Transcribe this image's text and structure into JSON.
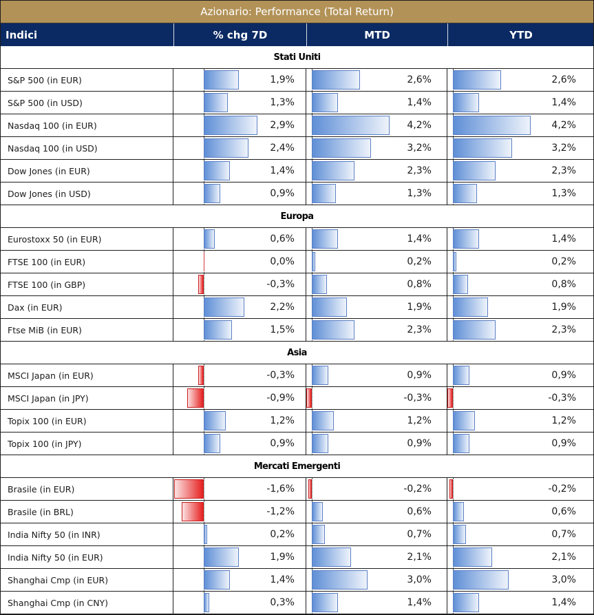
{
  "title": "Azionario: Performance (Total Return)",
  "headers": {
    "name": "Indici",
    "chg7d": "% chg 7D",
    "mtd": "MTD",
    "ytd": "YTD"
  },
  "colors": {
    "title_bg": "#b29257",
    "header_bg": "#0b2a63",
    "positive_bar": "#5f8fd6",
    "negative_bar": "#e62020"
  },
  "sections": [
    {
      "name": "Stati Uniti",
      "rows": [
        {
          "name": "S&P 500 (in EUR)",
          "d7": 1.9,
          "d7_label": "1,9%",
          "mtd": 2.6,
          "mtd_label": "2,6%",
          "ytd": 2.6,
          "ytd_label": "2,6%"
        },
        {
          "name": "S&P 500 (in USD)",
          "d7": 1.3,
          "d7_label": "1,3%",
          "mtd": 1.4,
          "mtd_label": "1,4%",
          "ytd": 1.4,
          "ytd_label": "1,4%"
        },
        {
          "name": "Nasdaq 100 (in EUR)",
          "d7": 2.9,
          "d7_label": "2,9%",
          "mtd": 4.2,
          "mtd_label": "4,2%",
          "ytd": 4.2,
          "ytd_label": "4,2%"
        },
        {
          "name": "Nasdaq 100 (in USD)",
          "d7": 2.4,
          "d7_label": "2,4%",
          "mtd": 3.2,
          "mtd_label": "3,2%",
          "ytd": 3.2,
          "ytd_label": "3,2%"
        },
        {
          "name": "Dow Jones (in EUR)",
          "d7": 1.4,
          "d7_label": "1,4%",
          "mtd": 2.3,
          "mtd_label": "2,3%",
          "ytd": 2.3,
          "ytd_label": "2,3%"
        },
        {
          "name": "Dow Jones (in USD)",
          "d7": 0.9,
          "d7_label": "0,9%",
          "mtd": 1.3,
          "mtd_label": "1,3%",
          "ytd": 1.3,
          "ytd_label": "1,3%"
        }
      ]
    },
    {
      "name": "Europa",
      "rows": [
        {
          "name": "Eurostoxx 50 (in EUR)",
          "d7": 0.6,
          "d7_label": "0,6%",
          "mtd": 1.4,
          "mtd_label": "1,4%",
          "ytd": 1.4,
          "ytd_label": "1,4%"
        },
        {
          "name": "FTSE 100 (in EUR)",
          "d7": 0.0,
          "d7_label": "0,0%",
          "mtd": 0.2,
          "mtd_label": "0,2%",
          "ytd": 0.2,
          "ytd_label": "0,2%"
        },
        {
          "name": "FTSE 100 (in GBP)",
          "d7": -0.3,
          "d7_label": "-0,3%",
          "mtd": 0.8,
          "mtd_label": "0,8%",
          "ytd": 0.8,
          "ytd_label": "0,8%"
        },
        {
          "name": "Dax (in EUR)",
          "d7": 2.2,
          "d7_label": "2,2%",
          "mtd": 1.9,
          "mtd_label": "1,9%",
          "ytd": 1.9,
          "ytd_label": "1,9%"
        },
        {
          "name": "Ftse MiB (in EUR)",
          "d7": 1.5,
          "d7_label": "1,5%",
          "mtd": 2.3,
          "mtd_label": "2,3%",
          "ytd": 2.3,
          "ytd_label": "2,3%"
        }
      ]
    },
    {
      "name": "Asia",
      "rows": [
        {
          "name": "MSCI Japan (in EUR)",
          "d7": -0.3,
          "d7_label": "-0,3%",
          "mtd": 0.9,
          "mtd_label": "0,9%",
          "ytd": 0.9,
          "ytd_label": "0,9%"
        },
        {
          "name": "MSCI Japan (in JPY)",
          "d7": -0.9,
          "d7_label": "-0,9%",
          "mtd": -0.3,
          "mtd_label": "-0,3%",
          "ytd": -0.3,
          "ytd_label": "-0,3%"
        },
        {
          "name": "Topix 100 (in EUR)",
          "d7": 1.2,
          "d7_label": "1,2%",
          "mtd": 1.2,
          "mtd_label": "1,2%",
          "ytd": 1.2,
          "ytd_label": "1,2%"
        },
        {
          "name": "Topix 100 (in JPY)",
          "d7": 0.9,
          "d7_label": "0,9%",
          "mtd": 0.9,
          "mtd_label": "0,9%",
          "ytd": 0.9,
          "ytd_label": "0,9%"
        }
      ]
    },
    {
      "name": "Mercati Emergenti",
      "rows": [
        {
          "name": "Brasile (in EUR)",
          "d7": -1.6,
          "d7_label": "-1,6%",
          "mtd": -0.2,
          "mtd_label": "-0,2%",
          "ytd": -0.2,
          "ytd_label": "-0,2%"
        },
        {
          "name": "Brasile (in BRL)",
          "d7": -1.2,
          "d7_label": "-1,2%",
          "mtd": 0.6,
          "mtd_label": "0,6%",
          "ytd": 0.6,
          "ytd_label": "0,6%"
        },
        {
          "name": "India Nifty 50 (in INR)",
          "d7": 0.2,
          "d7_label": "0,2%",
          "mtd": 0.7,
          "mtd_label": "0,7%",
          "ytd": 0.7,
          "ytd_label": "0,7%"
        },
        {
          "name": "India Nifty 50 (in EUR)",
          "d7": 1.9,
          "d7_label": "1,9%",
          "mtd": 2.1,
          "mtd_label": "2,1%",
          "ytd": 2.1,
          "ytd_label": "2,1%"
        },
        {
          "name": "Shanghai Cmp (in EUR)",
          "d7": 1.4,
          "d7_label": "1,4%",
          "mtd": 3.0,
          "mtd_label": "3,0%",
          "ytd": 3.0,
          "ytd_label": "3,0%"
        },
        {
          "name": "Shanghai Cmp (in CNY)",
          "d7": 0.3,
          "d7_label": "0,3%",
          "mtd": 1.4,
          "mtd_label": "1,4%",
          "ytd": 1.4,
          "ytd_label": "1,4%"
        }
      ]
    }
  ]
}
